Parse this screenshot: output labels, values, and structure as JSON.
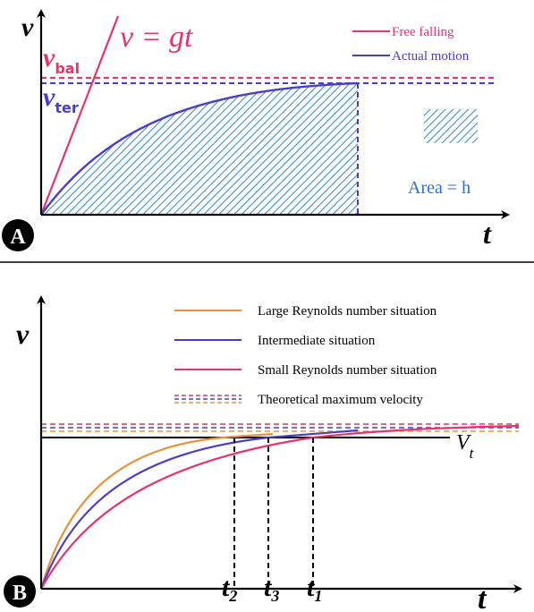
{
  "panel_a": {
    "badge": "A",
    "y_axis_label": "v",
    "x_axis_label": "t",
    "v_bal_main": "v",
    "v_bal_sub": "bal",
    "v_ter_main": "v",
    "v_ter_sub": "ter",
    "equation": "v = gt",
    "legend": [
      {
        "label": "Free falling",
        "color": "#e8336b"
      },
      {
        "label": "Actual motion",
        "color": "#4a3ccc"
      }
    ],
    "area_label": "Area = h",
    "hatch_color": "#3d8fd0"
  },
  "panel_b": {
    "badge": "B",
    "y_axis_label": "v",
    "x_axis_label": "t",
    "vt_main": "V",
    "vt_sub": "t",
    "legend": [
      {
        "label": "Large Reynolds number situation",
        "color": "#e8923a"
      },
      {
        "label": "Intermediate situation",
        "color": "#4a3ccc"
      },
      {
        "label": "Small Reynolds number situation",
        "color": "#e8336b"
      },
      {
        "label": "Theoretical maximum velocity",
        "color": "#e8336b"
      }
    ],
    "time_marks": [
      {
        "main": "t",
        "sub": "2"
      },
      {
        "main": "t",
        "sub": "3"
      },
      {
        "main": "t",
        "sub": "1"
      }
    ]
  }
}
